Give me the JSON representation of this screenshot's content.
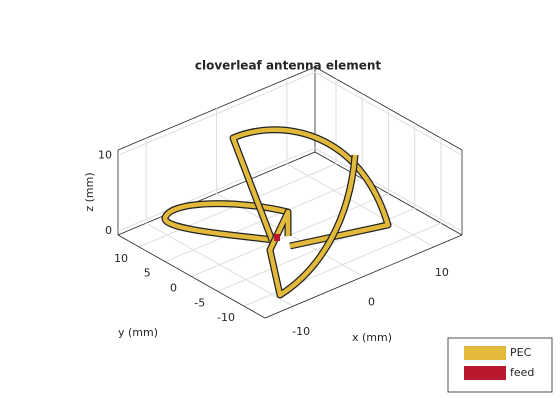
{
  "chart_data": {
    "type": "antenna3d",
    "title": "cloverleaf antenna element",
    "xlabel": "x (mm)",
    "ylabel": "y (mm)",
    "zlabel": "z (mm)",
    "xlim": [
      -14,
      14
    ],
    "ylim": [
      -14,
      14
    ],
    "zlim": [
      -0.5,
      10.7
    ],
    "xticks": [
      -10,
      0,
      10
    ],
    "yticks": [
      -10,
      -5,
      0,
      5,
      10
    ],
    "zticks": [
      0,
      10
    ],
    "grid": true,
    "legend": [
      {
        "name": "PEC",
        "color": "#e2b93b"
      },
      {
        "name": "feed",
        "color": "#b8192e"
      }
    ]
  }
}
